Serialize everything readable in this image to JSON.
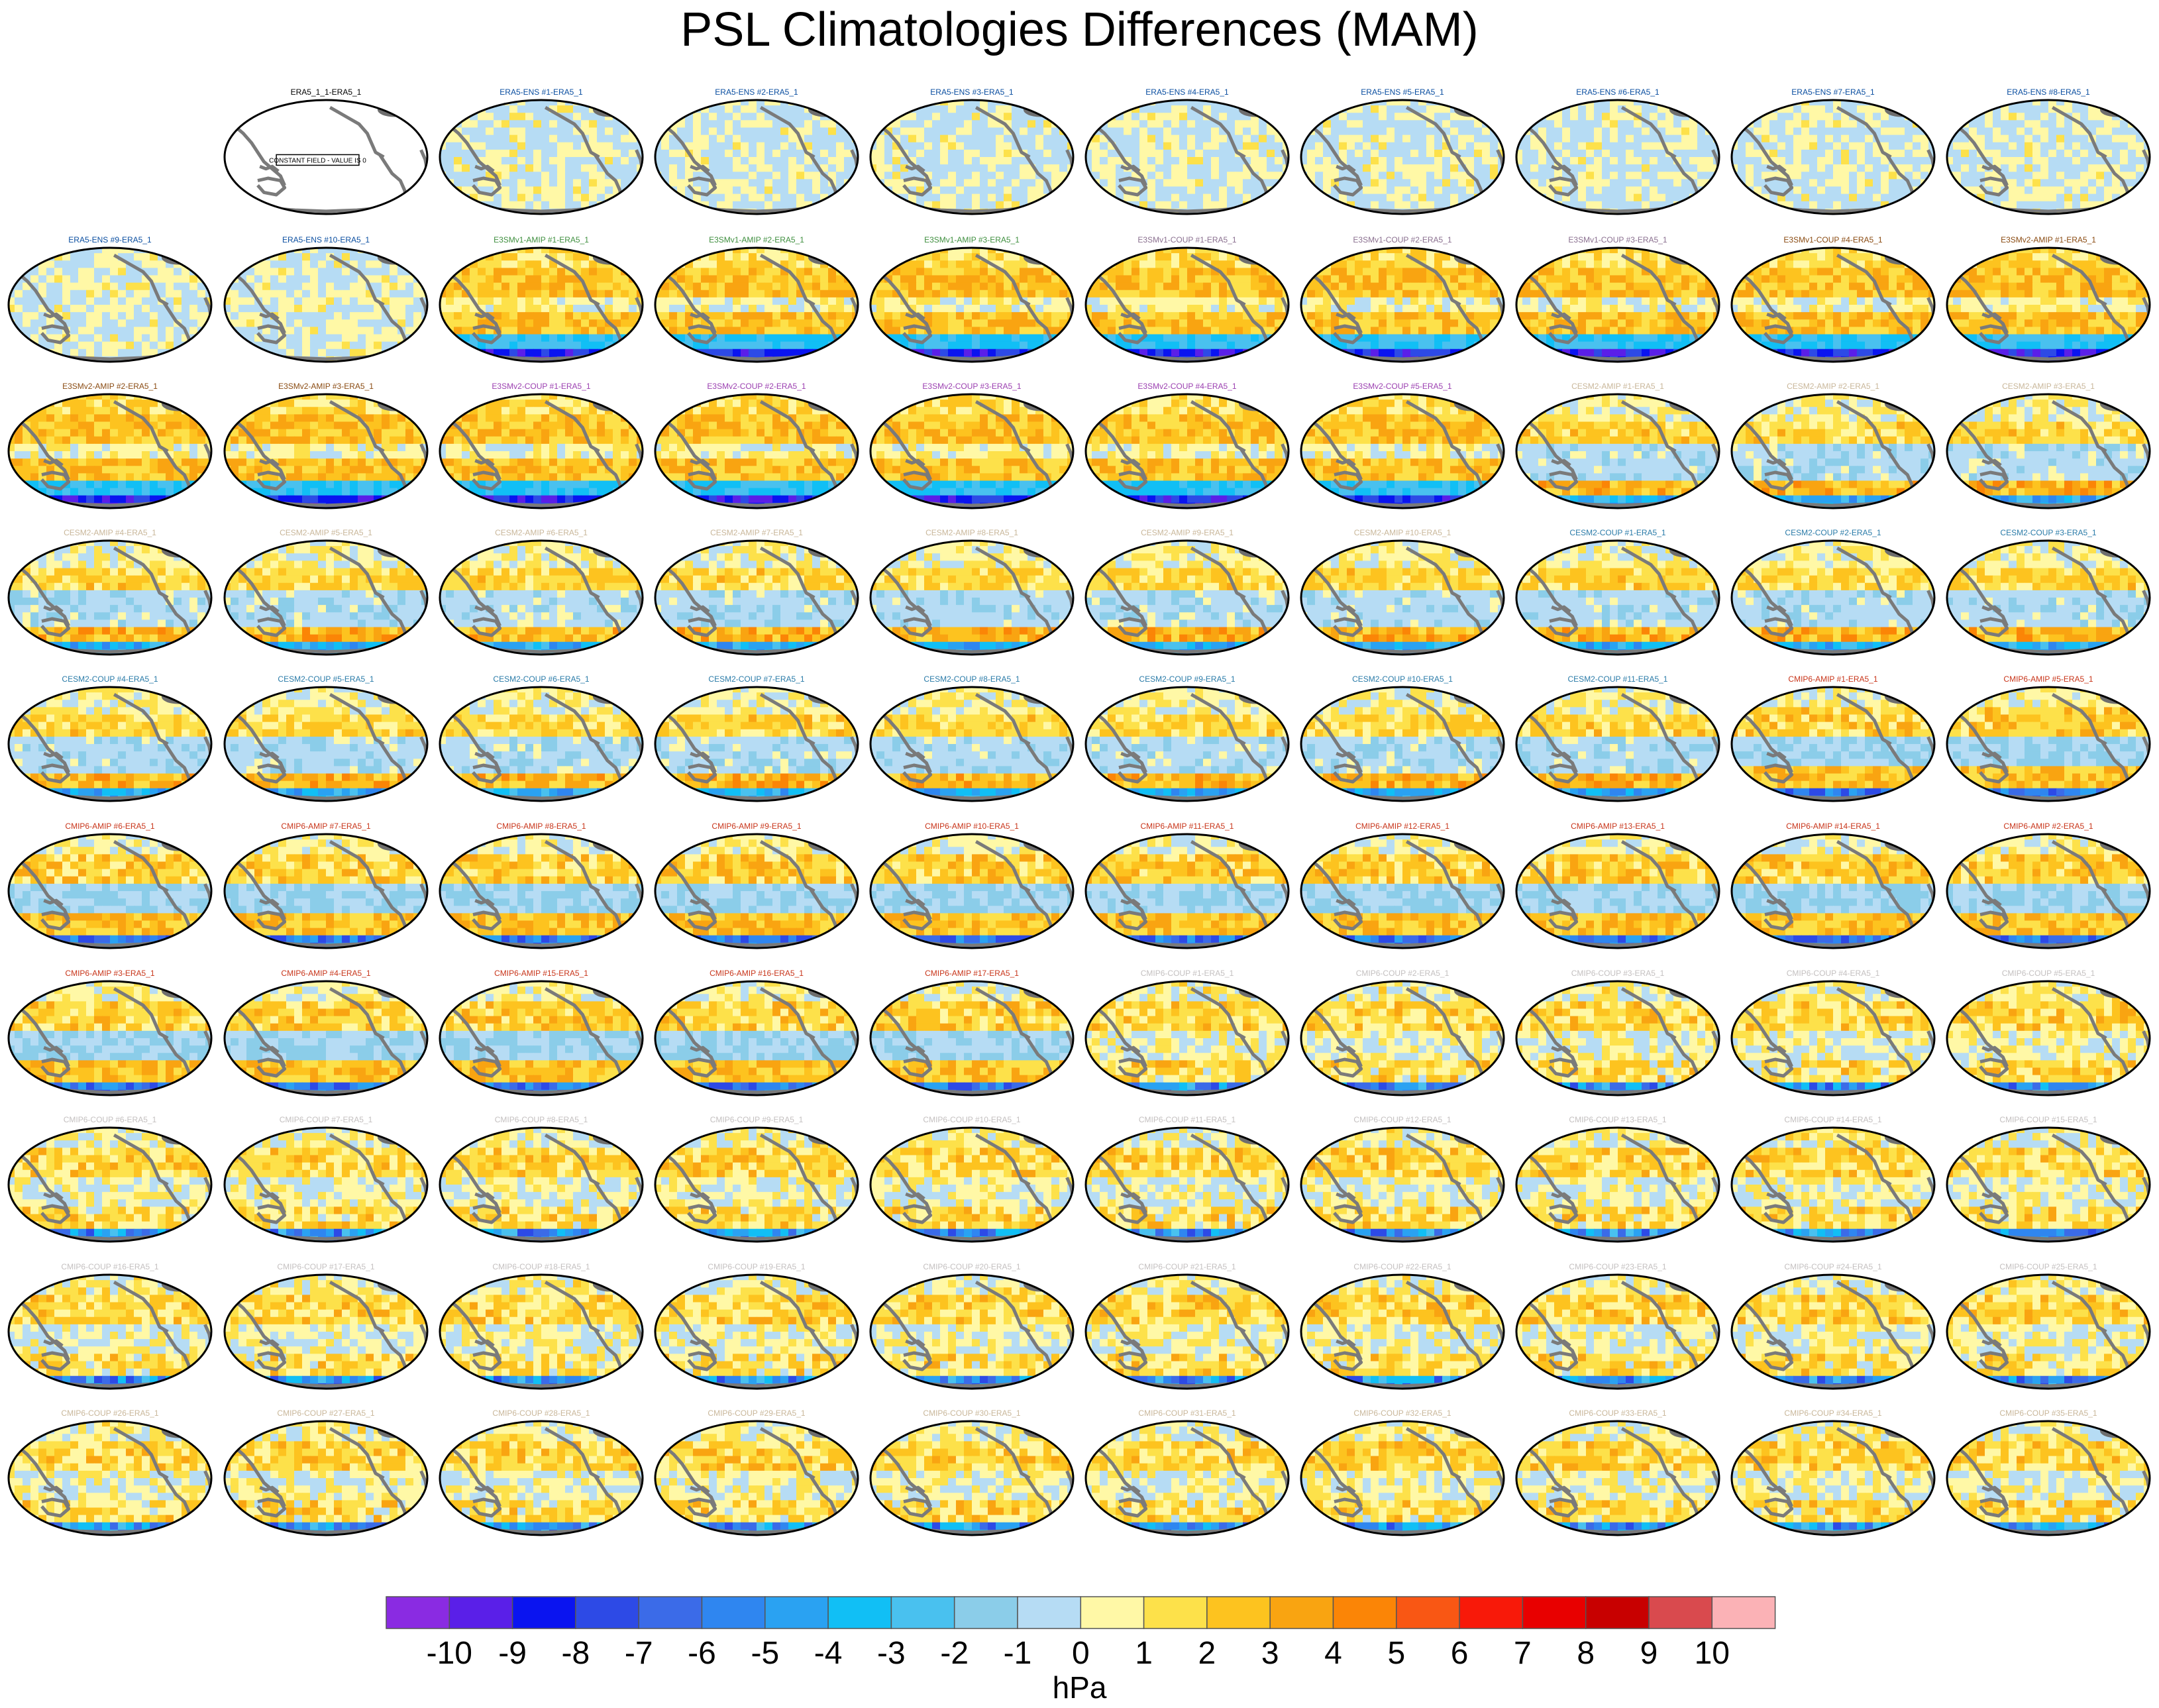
{
  "page_title": "PSL Climatologies Differences (MAM)",
  "chart_data": {
    "type": "heatmap",
    "title": "PSL Climatologies Differences (MAM)",
    "units": "hPa",
    "colorbar": {
      "tick_labels": [
        "-10",
        "-9",
        "-8",
        "-7",
        "-6",
        "-5",
        "-4",
        "-3",
        "-2",
        "-1",
        "0",
        "1",
        "2",
        "3",
        "4",
        "5",
        "6",
        "7",
        "8",
        "9",
        "10"
      ],
      "colors": [
        "#8a2be2",
        "#5a1fe8",
        "#0a14f0",
        "#2d4ae6",
        "#3b6be8",
        "#2f86f0",
        "#2aa2f2",
        "#11bff5",
        "#49c1ef",
        "#8bcde9",
        "#b6dcf4",
        "#fff8a6",
        "#fde14a",
        "#fdc31f",
        "#f9a411",
        "#fb8506",
        "#f95714",
        "#f81909",
        "#e80000",
        "#c80000",
        "#d94a4e",
        "#fbb2b6"
      ]
    },
    "grid": {
      "columns": 10,
      "rows": 10
    },
    "panels": [
      {
        "label": "ERA5_1_1-ERA5_1",
        "color": "#000000",
        "kind": "const",
        "annotation": "CONSTANT FIELD - VALUE IS 0"
      },
      {
        "label": "ERA5-ENS #1-ERA5_1",
        "color": "#0a4ea0",
        "kind": "ens"
      },
      {
        "label": "ERA5-ENS #2-ERA5_1",
        "color": "#0a4ea0",
        "kind": "ens"
      },
      {
        "label": "ERA5-ENS #3-ERA5_1",
        "color": "#0a4ea0",
        "kind": "ens"
      },
      {
        "label": "ERA5-ENS #4-ERA5_1",
        "color": "#0a4ea0",
        "kind": "ens"
      },
      {
        "label": "ERA5-ENS #5-ERA5_1",
        "color": "#0a4ea0",
        "kind": "ens"
      },
      {
        "label": "ERA5-ENS #6-ERA5_1",
        "color": "#0a4ea0",
        "kind": "ens"
      },
      {
        "label": "ERA5-ENS #7-ERA5_1",
        "color": "#0a4ea0",
        "kind": "ens"
      },
      {
        "label": "ERA5-ENS #8-ERA5_1",
        "color": "#0a4ea0",
        "kind": "ens"
      },
      {
        "label": "ERA5-ENS #9-ERA5_1",
        "color": "#0a4ea0",
        "kind": "ens"
      },
      {
        "label": "ERA5-ENS #10-ERA5_1",
        "color": "#0a4ea0",
        "kind": "ens"
      },
      {
        "label": "E3SMv1-AMIP #1-ERA5_1",
        "color": "#3f8f3f",
        "kind": "e3sm"
      },
      {
        "label": "E3SMv1-AMIP #2-ERA5_1",
        "color": "#3f8f3f",
        "kind": "e3sm"
      },
      {
        "label": "E3SMv1-AMIP #3-ERA5_1",
        "color": "#3f8f3f",
        "kind": "e3sm"
      },
      {
        "label": "E3SMv1-COUP #1-ERA5_1",
        "color": "#8a6f8f",
        "kind": "e3sm"
      },
      {
        "label": "E3SMv1-COUP #2-ERA5_1",
        "color": "#8a6f8f",
        "kind": "e3sm"
      },
      {
        "label": "E3SMv1-COUP #3-ERA5_1",
        "color": "#8a6f8f",
        "kind": "e3sm"
      },
      {
        "label": "E3SMv1-COUP #4-ERA5_1",
        "color": "#8a4b12",
        "kind": "e3sm"
      },
      {
        "label": "E3SMv2-AMIP #1-ERA5_1",
        "color": "#8a4b12",
        "kind": "e3sm"
      },
      {
        "label": "E3SMv2-AMIP #2-ERA5_1",
        "color": "#8a4b12",
        "kind": "e3sm"
      },
      {
        "label": "E3SMv2-AMIP #3-ERA5_1",
        "color": "#8a4b12",
        "kind": "e3sm"
      },
      {
        "label": "E3SMv2-COUP #1-ERA5_1",
        "color": "#9b3fb0",
        "kind": "e3sm"
      },
      {
        "label": "E3SMv2-COUP #2-ERA5_1",
        "color": "#9b3fb0",
        "kind": "e3sm"
      },
      {
        "label": "E3SMv2-COUP #3-ERA5_1",
        "color": "#9b3fb0",
        "kind": "e3sm"
      },
      {
        "label": "E3SMv2-COUP #4-ERA5_1",
        "color": "#9b3fb0",
        "kind": "e3sm"
      },
      {
        "label": "E3SMv2-COUP #5-ERA5_1",
        "color": "#9b3fb0",
        "kind": "e3sm"
      },
      {
        "label": "CESM2-AMIP #1-ERA5_1",
        "color": "#c9b79a",
        "kind": "cesm"
      },
      {
        "label": "CESM2-AMIP #2-ERA5_1",
        "color": "#c9b79a",
        "kind": "cesm"
      },
      {
        "label": "CESM2-AMIP #3-ERA5_1",
        "color": "#c9b79a",
        "kind": "cesm"
      },
      {
        "label": "CESM2-AMIP #4-ERA5_1",
        "color": "#c9b79a",
        "kind": "cesm"
      },
      {
        "label": "CESM2-AMIP #5-ERA5_1",
        "color": "#c9b79a",
        "kind": "cesm"
      },
      {
        "label": "CESM2-AMIP #6-ERA5_1",
        "color": "#c9b79a",
        "kind": "cesm"
      },
      {
        "label": "CESM2-AMIP #7-ERA5_1",
        "color": "#c9b79a",
        "kind": "cesm"
      },
      {
        "label": "CESM2-AMIP #8-ERA5_1",
        "color": "#c9b79a",
        "kind": "cesm"
      },
      {
        "label": "CESM2-AMIP #9-ERA5_1",
        "color": "#c9b79a",
        "kind": "cesm"
      },
      {
        "label": "CESM2-AMIP #10-ERA5_1",
        "color": "#c9b79a",
        "kind": "cesm"
      },
      {
        "label": "CESM2-COUP #1-ERA5_1",
        "color": "#2a7ba8",
        "kind": "cesm"
      },
      {
        "label": "CESM2-COUP #2-ERA5_1",
        "color": "#2a7ba8",
        "kind": "cesm"
      },
      {
        "label": "CESM2-COUP #3-ERA5_1",
        "color": "#2a7ba8",
        "kind": "cesm"
      },
      {
        "label": "CESM2-COUP #4-ERA5_1",
        "color": "#2a7ba8",
        "kind": "cesm"
      },
      {
        "label": "CESM2-COUP #5-ERA5_1",
        "color": "#2a7ba8",
        "kind": "cesm"
      },
      {
        "label": "CESM2-COUP #6-ERA5_1",
        "color": "#2a7ba8",
        "kind": "cesm"
      },
      {
        "label": "CESM2-COUP #7-ERA5_1",
        "color": "#2a7ba8",
        "kind": "cesm"
      },
      {
        "label": "CESM2-COUP #8-ERA5_1",
        "color": "#2a7ba8",
        "kind": "cesm"
      },
      {
        "label": "CESM2-COUP #9-ERA5_1",
        "color": "#2a7ba8",
        "kind": "cesm"
      },
      {
        "label": "CESM2-COUP #10-ERA5_1",
        "color": "#2a7ba8",
        "kind": "cesm"
      },
      {
        "label": "CESM2-COUP #11-ERA5_1",
        "color": "#2a7ba8",
        "kind": "cesm"
      },
      {
        "label": "CMIP6-AMIP #1-ERA5_1",
        "color": "#c8351a",
        "kind": "cmipa"
      },
      {
        "label": "CMIP6-AMIP #5-ERA5_1",
        "color": "#c8351a",
        "kind": "cmipa"
      },
      {
        "label": "CMIP6-AMIP #6-ERA5_1",
        "color": "#c8351a",
        "kind": "cmipa"
      },
      {
        "label": "CMIP6-AMIP #7-ERA5_1",
        "color": "#c8351a",
        "kind": "cmipa"
      },
      {
        "label": "CMIP6-AMIP #8-ERA5_1",
        "color": "#c8351a",
        "kind": "cmipa"
      },
      {
        "label": "CMIP6-AMIP #9-ERA5_1",
        "color": "#c8351a",
        "kind": "cmipa"
      },
      {
        "label": "CMIP6-AMIP #10-ERA5_1",
        "color": "#c8351a",
        "kind": "cmipa"
      },
      {
        "label": "CMIP6-AMIP #11-ERA5_1",
        "color": "#c8351a",
        "kind": "cmipa"
      },
      {
        "label": "CMIP6-AMIP #12-ERA5_1",
        "color": "#c8351a",
        "kind": "cmipa"
      },
      {
        "label": "CMIP6-AMIP #13-ERA5_1",
        "color": "#c8351a",
        "kind": "cmipa"
      },
      {
        "label": "CMIP6-AMIP #14-ERA5_1",
        "color": "#c8351a",
        "kind": "cmipa"
      },
      {
        "label": "CMIP6-AMIP #2-ERA5_1",
        "color": "#c8351a",
        "kind": "cmipa"
      },
      {
        "label": "CMIP6-AMIP #3-ERA5_1",
        "color": "#c8351a",
        "kind": "cmipa"
      },
      {
        "label": "CMIP6-AMIP #4-ERA5_1",
        "color": "#c8351a",
        "kind": "cmipa"
      },
      {
        "label": "CMIP6-AMIP #15-ERA5_1",
        "color": "#c8351a",
        "kind": "cmipa"
      },
      {
        "label": "CMIP6-AMIP #16-ERA5_1",
        "color": "#c8351a",
        "kind": "cmipa"
      },
      {
        "label": "CMIP6-AMIP #17-ERA5_1",
        "color": "#c8351a",
        "kind": "cmipa"
      },
      {
        "label": "CMIP6-COUP #1-ERA5_1",
        "color": "#c4c0c0",
        "kind": "cmipc"
      },
      {
        "label": "CMIP6-COUP #2-ERA5_1",
        "color": "#c4c0c0",
        "kind": "cmipc"
      },
      {
        "label": "CMIP6-COUP #3-ERA5_1",
        "color": "#c4c0c0",
        "kind": "cmipc"
      },
      {
        "label": "CMIP6-COUP #4-ERA5_1",
        "color": "#c4c0c0",
        "kind": "cmipc"
      },
      {
        "label": "CMIP6-COUP #5-ERA5_1",
        "color": "#c4c0c0",
        "kind": "cmipc"
      },
      {
        "label": "CMIP6-COUP #6-ERA5_1",
        "color": "#c4c0c0",
        "kind": "cmipc"
      },
      {
        "label": "CMIP6-COUP #7-ERA5_1",
        "color": "#c4c0c0",
        "kind": "cmipc"
      },
      {
        "label": "CMIP6-COUP #8-ERA5_1",
        "color": "#c4c0c0",
        "kind": "cmipc"
      },
      {
        "label": "CMIP6-COUP #9-ERA5_1",
        "color": "#c4c0c0",
        "kind": "cmipc"
      },
      {
        "label": "CMIP6-COUP #10-ERA5_1",
        "color": "#c4c0c0",
        "kind": "cmipc"
      },
      {
        "label": "CMIP6-COUP #11-ERA5_1",
        "color": "#c4c0c0",
        "kind": "cmipc"
      },
      {
        "label": "CMIP6-COUP #12-ERA5_1",
        "color": "#c4c0c0",
        "kind": "cmipc"
      },
      {
        "label": "CMIP6-COUP #13-ERA5_1",
        "color": "#c4c0c0",
        "kind": "cmipc"
      },
      {
        "label": "CMIP6-COUP #14-ERA5_1",
        "color": "#c4c0c0",
        "kind": "cmipc"
      },
      {
        "label": "CMIP6-COUP #15-ERA5_1",
        "color": "#c4c0c0",
        "kind": "cmipc"
      },
      {
        "label": "CMIP6-COUP #16-ERA5_1",
        "color": "#c4c0c0",
        "kind": "cmipc"
      },
      {
        "label": "CMIP6-COUP #17-ERA5_1",
        "color": "#c4c0c0",
        "kind": "cmipc"
      },
      {
        "label": "CMIP6-COUP #18-ERA5_1",
        "color": "#c4c0c0",
        "kind": "cmipc"
      },
      {
        "label": "CMIP6-COUP #19-ERA5_1",
        "color": "#c4c0c0",
        "kind": "cmipc"
      },
      {
        "label": "CMIP6-COUP #20-ERA5_1",
        "color": "#c4c0c0",
        "kind": "cmipc"
      },
      {
        "label": "CMIP6-COUP #21-ERA5_1",
        "color": "#c4c0c0",
        "kind": "cmipc"
      },
      {
        "label": "CMIP6-COUP #22-ERA5_1",
        "color": "#c4c0c0",
        "kind": "cmipc"
      },
      {
        "label": "CMIP6-COUP #23-ERA5_1",
        "color": "#c4c0c0",
        "kind": "cmipc"
      },
      {
        "label": "CMIP6-COUP #24-ERA5_1",
        "color": "#c4c0c0",
        "kind": "cmipc"
      },
      {
        "label": "CMIP6-COUP #25-ERA5_1",
        "color": "#c4c0c0",
        "kind": "cmipc"
      },
      {
        "label": "CMIP6-COUP #26-ERA5_1",
        "color": "#c9b79a",
        "kind": "cmipc"
      },
      {
        "label": "CMIP6-COUP #27-ERA5_1",
        "color": "#c9b79a",
        "kind": "cmipc"
      },
      {
        "label": "CMIP6-COUP #28-ERA5_1",
        "color": "#c9b79a",
        "kind": "cmipc"
      },
      {
        "label": "CMIP6-COUP #29-ERA5_1",
        "color": "#c9b79a",
        "kind": "cmipc"
      },
      {
        "label": "CMIP6-COUP #30-ERA5_1",
        "color": "#c9b79a",
        "kind": "cmipc"
      },
      {
        "label": "CMIP6-COUP #31-ERA5_1",
        "color": "#c9b79a",
        "kind": "cmipc"
      },
      {
        "label": "CMIP6-COUP #32-ERA5_1",
        "color": "#c9b79a",
        "kind": "cmipc"
      },
      {
        "label": "CMIP6-COUP #33-ERA5_1",
        "color": "#c9b79a",
        "kind": "cmipc"
      },
      {
        "label": "CMIP6-COUP #34-ERA5_1",
        "color": "#c9b79a",
        "kind": "cmipc"
      },
      {
        "label": "CMIP6-COUP #35-ERA5_1",
        "color": "#c9b79a",
        "kind": "cmipc"
      }
    ]
  }
}
